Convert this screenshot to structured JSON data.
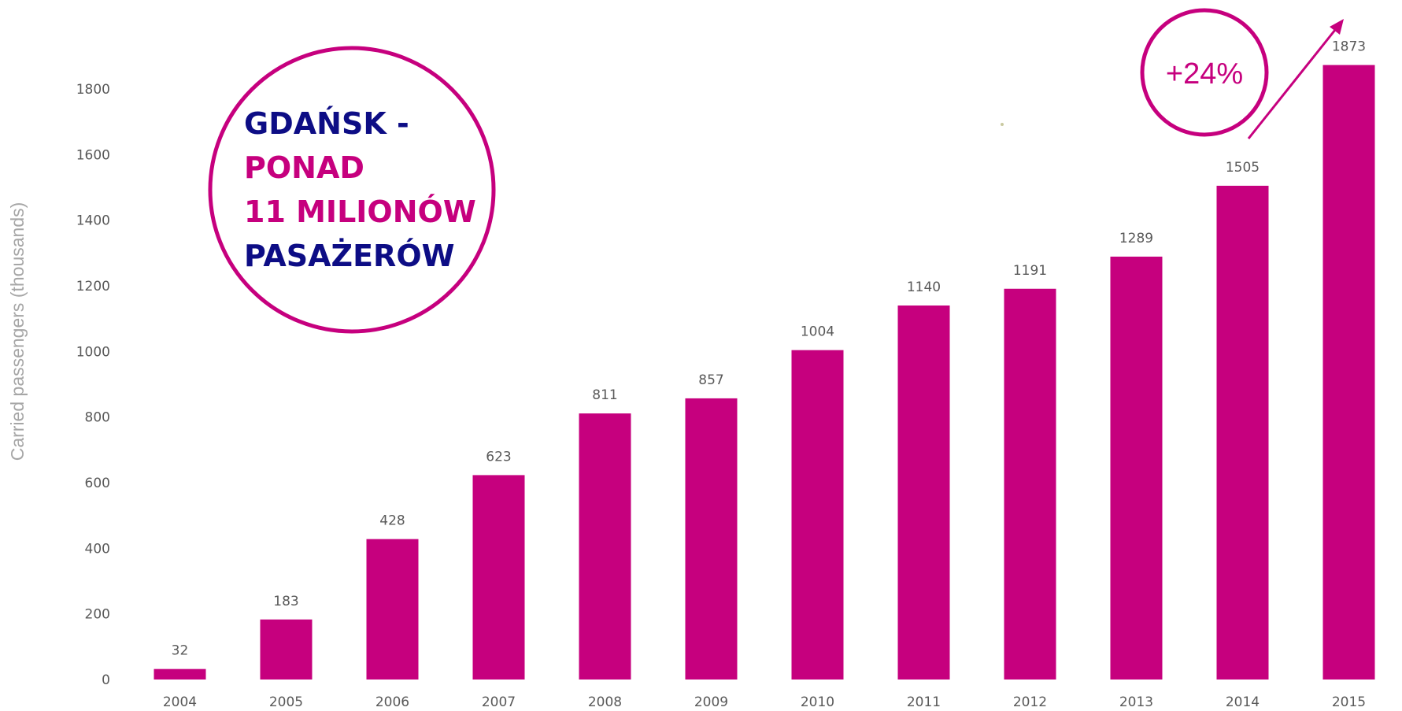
{
  "colors": {
    "bar": "#c6007e",
    "navy": "#0d0d85",
    "magenta": "#c6007e"
  },
  "chart_data": {
    "type": "bar",
    "categories": [
      "2004",
      "2005",
      "2006",
      "2007",
      "2008",
      "2009",
      "2010",
      "2011",
      "2012",
      "2013",
      "2014",
      "2015"
    ],
    "values": [
      32,
      183,
      428,
      623,
      811,
      857,
      1004,
      1140,
      1191,
      1289,
      1505,
      1873
    ],
    "ylabel": "Carried passengers (thousands)",
    "ylim": [
      0,
      1800
    ],
    "yticks": [
      0,
      200,
      400,
      600,
      800,
      1000,
      1200,
      1400,
      1600,
      1800
    ],
    "grid": false,
    "data_labels": true
  },
  "callout": {
    "line1": "GDAŃSK -",
    "line2": "PONAD",
    "line3": "11 MILIONÓW",
    "line4": "PASAŻERÓW"
  },
  "growth": {
    "label": "+24%"
  }
}
